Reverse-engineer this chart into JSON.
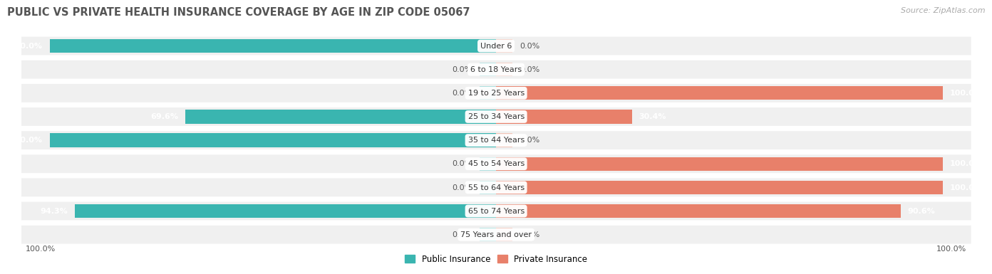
{
  "title": "PUBLIC VS PRIVATE HEALTH INSURANCE COVERAGE BY AGE IN ZIP CODE 05067",
  "source": "Source: ZipAtlas.com",
  "categories": [
    "Under 6",
    "6 to 18 Years",
    "19 to 25 Years",
    "25 to 34 Years",
    "35 to 44 Years",
    "45 to 54 Years",
    "55 to 64 Years",
    "65 to 74 Years",
    "75 Years and over"
  ],
  "public_values": [
    100.0,
    0.0,
    0.0,
    69.6,
    100.0,
    0.0,
    0.0,
    94.3,
    0.0
  ],
  "private_values": [
    0.0,
    0.0,
    100.0,
    30.4,
    0.0,
    100.0,
    100.0,
    90.6,
    0.0
  ],
  "public_color": "#3ab5b0",
  "public_color_light": "#a8dedd",
  "private_color": "#e8806a",
  "private_color_light": "#f2c4b8",
  "row_bg_color": "#f0f0f0",
  "title_color": "#555555",
  "source_color": "#aaaaaa",
  "legend_label_public": "Public Insurance",
  "legend_label_private": "Private Insurance",
  "left_axis_label": "100.0%",
  "right_axis_label": "100.0%"
}
